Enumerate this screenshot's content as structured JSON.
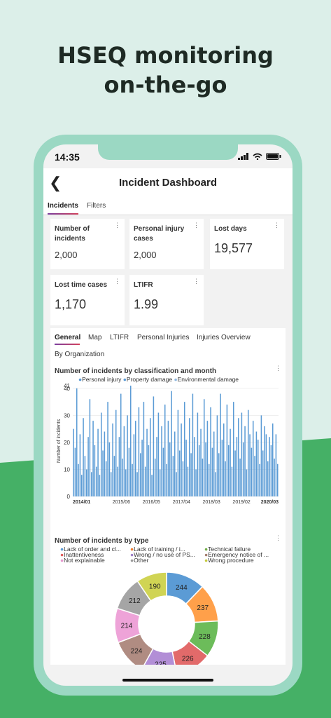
{
  "headline": {
    "line1": "HSEQ monitoring",
    "line2": "on-the-go"
  },
  "status": {
    "time": "14:35"
  },
  "nav": {
    "title": "Incident Dashboard"
  },
  "tabs": [
    {
      "label": "Incidents"
    },
    {
      "label": "Filters"
    }
  ],
  "kpis": [
    {
      "label": "Number of incidents",
      "value": "2,000"
    },
    {
      "label": "Personal injury cases",
      "value": "2,000"
    },
    {
      "label": "Lost days",
      "value": "19,577"
    },
    {
      "label": "Lost time cases",
      "value": "1,170"
    },
    {
      "label": "LTIFR",
      "value": "1.99"
    }
  ],
  "panel_tabs": [
    {
      "label": "General"
    },
    {
      "label": "Map"
    },
    {
      "label": "LTIFR"
    },
    {
      "label": "Personal Injuries"
    },
    {
      "label": "Injuries Overview"
    },
    {
      "label": "By Organization"
    }
  ],
  "colors": {
    "personal": "#5b9bd5",
    "property": "#8fb8e0",
    "environmental": "#a9cbe8"
  },
  "chart_data": [
    {
      "type": "bar",
      "title": "Number of incidents by classification and month",
      "ylabel": "Number of incidents",
      "ylim": [
        0,
        41
      ],
      "yticks": [
        "0",
        "10",
        "20",
        "30",
        "40",
        "41"
      ],
      "xticks": [
        "2014/01",
        "2015/06",
        "2016/05",
        "2017/04",
        "2018/03",
        "2019/02",
        "2020/03"
      ],
      "series": [
        {
          "name": "Personal injury"
        },
        {
          "name": "Property damage"
        },
        {
          "name": "Environmental damage"
        }
      ],
      "grid": true,
      "legend": "top",
      "values": [
        25,
        18,
        40,
        12,
        23,
        8,
        29,
        15,
        10,
        22,
        36,
        9,
        28,
        19,
        11,
        25,
        8,
        31,
        17,
        24,
        13,
        35,
        20,
        9,
        27,
        15,
        32,
        11,
        22,
        38,
        14,
        26,
        10,
        30,
        18,
        41,
        12,
        23,
        28,
        9,
        33,
        16,
        21,
        35,
        11,
        25,
        19,
        29,
        8,
        37,
        14,
        22,
        31,
        10,
        26,
        18,
        34,
        12,
        28,
        20,
        39,
        15,
        24,
        9,
        32,
        17,
        27,
        13,
        35,
        21,
        11,
        29,
        16,
        38,
        22,
        10,
        31,
        19,
        25,
        14,
        36,
        20,
        28,
        12,
        33,
        18,
        24,
        9,
        30,
        16,
        38,
        21,
        27,
        13,
        34,
        19,
        25,
        11,
        35,
        17,
        22,
        29,
        14,
        31,
        20,
        26,
        10,
        32,
        23,
        18,
        28,
        15,
        24,
        21,
        12,
        30,
        17,
        26,
        23,
        13,
        22,
        19,
        27,
        14,
        23,
        12
      ]
    },
    {
      "type": "pie",
      "title": "Number of incidents by type",
      "legend": "top",
      "labels": [
        "Lack of order and cl...",
        "Lack of training / i...",
        "Technical failure",
        "Inattentiveness",
        "Wrong / no use of PS...",
        "Emergency notice of ...",
        "Not explainable",
        "Other",
        "Wrong procedure"
      ],
      "legend_colors": [
        "#5b9bd5",
        "#ed7d31",
        "#70ad47",
        "#e05c5c",
        "#9e80c8",
        "#a47b6e",
        "#e699cf",
        "#9a9a9a",
        "#c5c93c"
      ],
      "values": [
        244,
        237,
        228,
        226,
        225,
        224,
        214,
        212,
        190
      ],
      "colors": [
        "#5b9bd5",
        "#ffa04a",
        "#6cbc5a",
        "#e26a6a",
        "#b28ed6",
        "#b08c82",
        "#eea3d8",
        "#a5a5a5",
        "#d0d454"
      ]
    }
  ]
}
